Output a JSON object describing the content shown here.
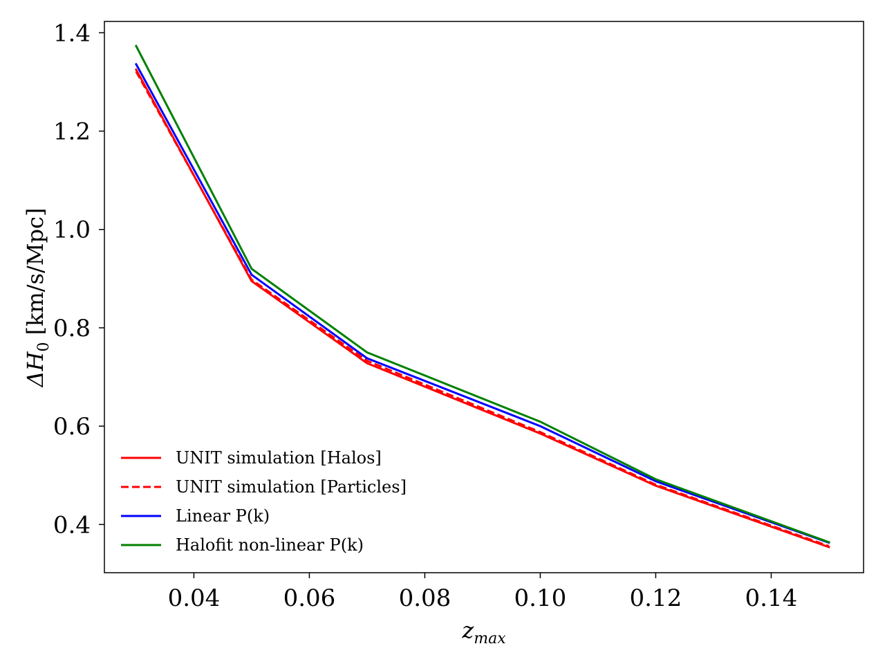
{
  "chart_data": {
    "type": "line",
    "title": "",
    "xlabel": "z_max",
    "xlabel_main": "z",
    "xlabel_sub": "max",
    "ylabel": "ΔH0 [km/s/Mpc]",
    "ylabel_prefix": "ΔH",
    "ylabel_sub": "0",
    "ylabel_units": " [km/s/Mpc]",
    "xlim": [
      0.0245,
      0.156
    ],
    "ylim": [
      0.302,
      1.423
    ],
    "xticks": [
      0.04,
      0.06,
      0.08,
      0.1,
      0.12,
      0.14
    ],
    "xtick_labels": [
      "0.04",
      "0.06",
      "0.08",
      "0.10",
      "0.12",
      "0.14"
    ],
    "yticks": [
      0.4,
      0.6,
      0.8,
      1.0,
      1.2,
      1.4
    ],
    "ytick_labels": [
      "0.4",
      "0.6",
      "0.8",
      "1.0",
      "1.2",
      "1.4"
    ],
    "grid": false,
    "legend_position": "lower-left",
    "x": [
      0.03,
      0.05,
      0.07,
      0.1,
      0.12,
      0.15
    ],
    "series": [
      {
        "name": "UNIT simulation [Halos]",
        "color": "#ff0000",
        "dash": "solid",
        "values": [
          1.325,
          0.895,
          0.728,
          0.585,
          0.479,
          0.354
        ]
      },
      {
        "name": "UNIT simulation [Particles]",
        "color": "#ff0000",
        "dash": "dashed",
        "values": [
          1.321,
          0.898,
          0.733,
          0.588,
          0.481,
          0.356
        ]
      },
      {
        "name": "Linear P(k)",
        "color": "#0000ff",
        "dash": "solid",
        "values": [
          1.336,
          0.908,
          0.738,
          0.6,
          0.488,
          0.363
        ]
      },
      {
        "name": "Halofit non-linear P(k)",
        "color": "#008000",
        "dash": "solid",
        "values": [
          1.373,
          0.92,
          0.75,
          0.609,
          0.492,
          0.364
        ]
      }
    ]
  }
}
